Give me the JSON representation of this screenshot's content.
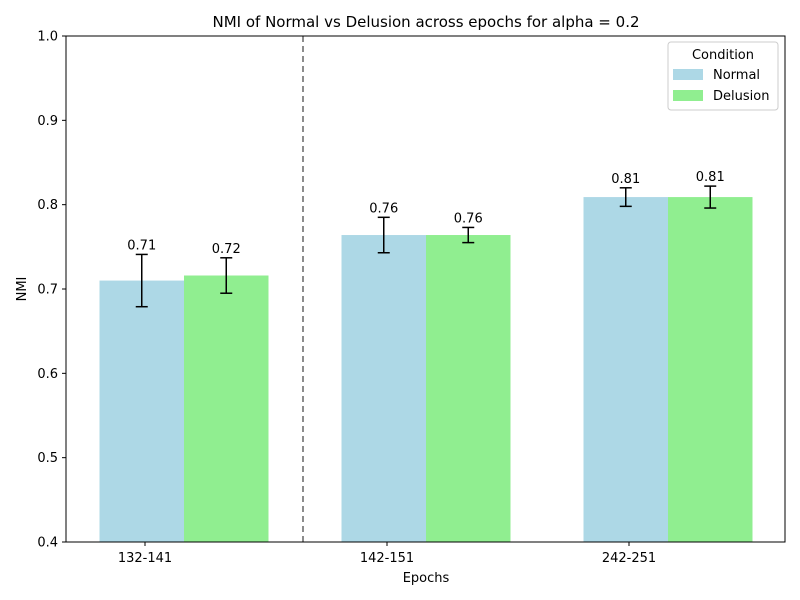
{
  "chart_data": {
    "type": "bar",
    "title": "NMI of Normal vs Delusion across epochs for alpha = 0.2",
    "xlabel": "Epochs",
    "ylabel": "NMI",
    "ylim": [
      0.4,
      1.0
    ],
    "yticks": [
      "0.4",
      "0.5",
      "0.6",
      "0.7",
      "0.8",
      "0.9",
      "1.0"
    ],
    "categories": [
      "132-141",
      "142-151",
      "242-251"
    ],
    "series": [
      {
        "name": "Normal",
        "color": "#add8e6",
        "values": [
          0.71,
          0.764,
          0.809
        ],
        "errors": [
          0.031,
          0.021,
          0.011
        ],
        "labels": [
          "0.71",
          "0.76",
          "0.81"
        ]
      },
      {
        "name": "Delusion",
        "color": "#90ee90",
        "values": [
          0.716,
          0.764,
          0.809
        ],
        "errors": [
          0.021,
          0.009,
          0.013
        ],
        "labels": [
          "0.72",
          "0.76",
          "0.81"
        ]
      }
    ],
    "legend": {
      "title": "Condition",
      "placement": "top-right"
    },
    "grid": false,
    "separator_after_category": 0
  }
}
